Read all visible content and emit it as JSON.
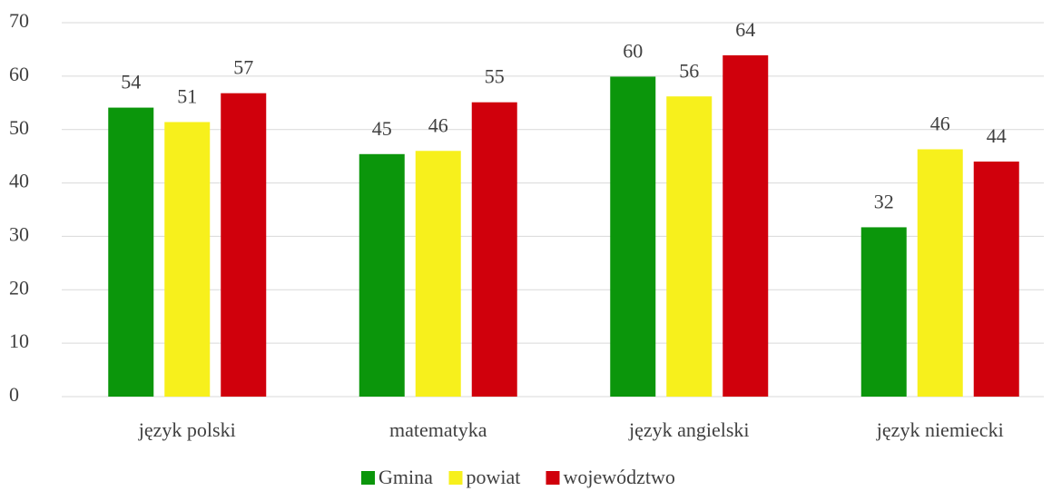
{
  "chart_data": {
    "type": "bar",
    "categories": [
      "język polski",
      "matematyka",
      "język angielski",
      "język niemiecki"
    ],
    "series": [
      {
        "name": "Gmina",
        "color": "#0b960b",
        "values": [
          54.1,
          45.4,
          59.9,
          31.7
        ],
        "value_labels": [
          "54",
          "45",
          "60",
          "32"
        ]
      },
      {
        "name": "powiat",
        "color": "#f7f01c",
        "values": [
          51.4,
          46.0,
          56.2,
          46.3
        ],
        "value_labels": [
          "51",
          "46",
          "56",
          "46"
        ]
      },
      {
        "name": "województwo",
        "color": "#d0000c",
        "values": [
          56.8,
          55.1,
          63.9,
          44.0
        ],
        "value_labels": [
          "57",
          "55",
          "64",
          "44"
        ]
      }
    ],
    "ylim": [
      0,
      70
    ],
    "yticks": [
      0,
      10,
      20,
      30,
      40,
      50,
      60,
      70
    ],
    "grid": true,
    "legend": "bottom"
  }
}
